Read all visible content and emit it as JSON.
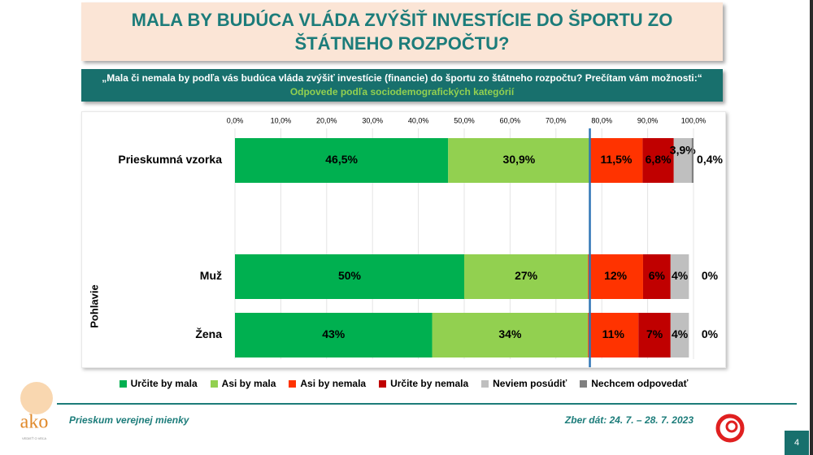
{
  "header": {
    "title": "MALA BY BUDÚCA VLÁDA ZVÝŠIŤ INVESTÍCIE DO ŠPORTU ZO ŠTÁTNEHO ROZPOČTU?",
    "question": "„Mala či nemala by podľa vás budúca vláda zvýšiť investície (financie) do športu zo štátneho rozpočtu? Prečítam vám možnosti:“",
    "subtitle": "Odpovede podľa sociodemografických kategórií"
  },
  "chart_data": {
    "type": "stacked_bar_horizontal",
    "categories": [
      "Prieskumná vzorka",
      "Muž",
      "Žena"
    ],
    "category_group": "Pohlavie",
    "xlim": [
      0,
      100
    ],
    "xticks": [
      {
        "value": 0,
        "label": "0,0%"
      },
      {
        "value": 10,
        "label": "10,0%"
      },
      {
        "value": 20,
        "label": "20,0%"
      },
      {
        "value": 30,
        "label": "30,0%"
      },
      {
        "value": 40,
        "label": "40,0%"
      },
      {
        "value": 50,
        "label": "50,0%"
      },
      {
        "value": 60,
        "label": "60,0%"
      },
      {
        "value": 70,
        "label": "70,0%"
      },
      {
        "value": 80,
        "label": "80,0%"
      },
      {
        "value": 90,
        "label": "90,0%"
      },
      {
        "value": 100,
        "label": "100,0%"
      }
    ],
    "grid": true,
    "reference_line": {
      "value": 77.4,
      "color": "#2e75b6"
    },
    "series": [
      {
        "name": "Určite by mala",
        "color": "#00b050",
        "values": [
          46.5,
          50,
          43
        ],
        "value_labels": [
          "46,5%",
          "50%",
          "43%"
        ]
      },
      {
        "name": "Asi by mala",
        "color": "#92d050",
        "values": [
          30.9,
          27,
          34
        ],
        "value_labels": [
          "30,9%",
          "27%",
          "34%"
        ]
      },
      {
        "name": "Asi by nemala",
        "color": "#ff3300",
        "values": [
          11.5,
          12,
          11
        ],
        "value_labels": [
          "11,5%",
          "12%",
          "11%"
        ]
      },
      {
        "name": "Určite by nemala",
        "color": "#c00000",
        "values": [
          6.8,
          6,
          7
        ],
        "value_labels": [
          "6,8%",
          "6%",
          "7%"
        ]
      },
      {
        "name": "Neviem posúdiť",
        "color": "#bfbfbf",
        "values": [
          3.9,
          4,
          4
        ],
        "value_labels": [
          "3,9%",
          "4%",
          "4%"
        ]
      },
      {
        "name": "Nechcem odpovedať",
        "color": "#808080",
        "values": [
          0.4,
          0,
          0
        ],
        "value_labels": [
          "0,4%",
          "0%",
          "0%"
        ]
      }
    ]
  },
  "footer": {
    "left": "Prieskum verejnej mienky",
    "right": "Zber dát: 24. 7. – 28. 7. 2023",
    "page": "4",
    "logo": "ako",
    "logo_tagline": "VEDIEŤ O VEĽA"
  }
}
